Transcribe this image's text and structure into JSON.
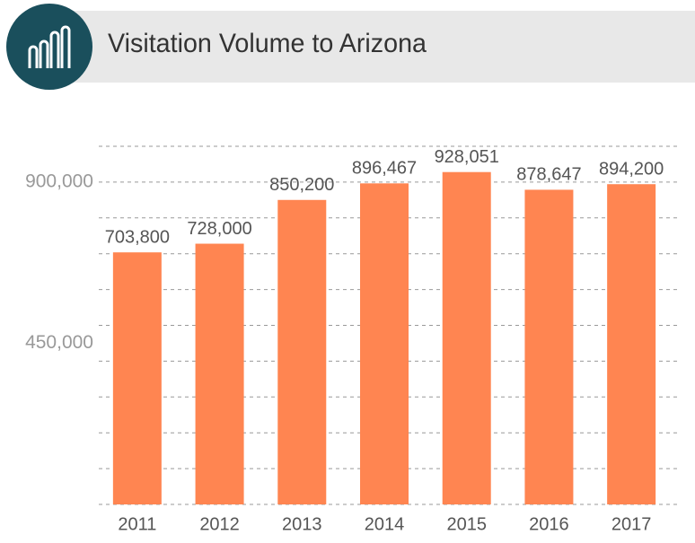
{
  "chart_data": {
    "type": "bar",
    "title": "Visitation Volume to Arizona",
    "categories": [
      "2011",
      "2012",
      "2013",
      "2014",
      "2015",
      "2016",
      "2017"
    ],
    "values": [
      703800,
      728000,
      850200,
      896467,
      928051,
      878647,
      894200
    ],
    "value_labels": [
      "703,800",
      "728,000",
      "850,200",
      "896,467",
      "928,051",
      "878,647",
      "894,200"
    ],
    "color": "#ff8551",
    "ylim": [
      0,
      1000000
    ],
    "yticks": [
      {
        "value": 450000,
        "label": "450,000"
      },
      {
        "value": 900000,
        "label": "900,000"
      }
    ],
    "grid": true,
    "grid_lines": [
      0,
      100000,
      200000,
      300000,
      400000,
      500000,
      600000,
      700000,
      800000,
      900000,
      1000000
    ]
  }
}
